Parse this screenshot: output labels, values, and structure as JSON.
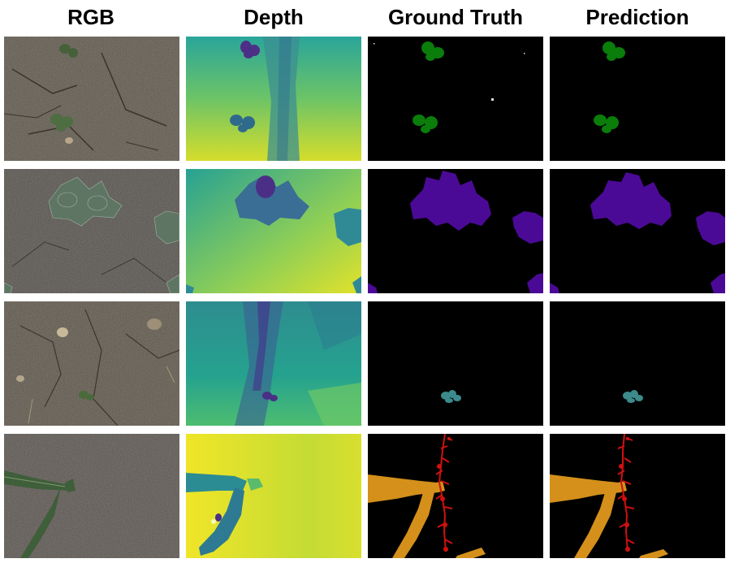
{
  "columns": [
    "RGB",
    "Depth",
    "Ground Truth",
    "Prediction"
  ],
  "class_colors": {
    "row1": "#0a7d0a",
    "row2": "#4b0a96",
    "row3": "#3c8a8c",
    "row4_crop": "#d4901a",
    "row4_weed": "#d01010"
  },
  "panel_backgrounds": {
    "mask": "#000000",
    "soil": "#5c5347",
    "depth_low": "#2d7f8c",
    "depth_high": "#e5e22a"
  }
}
